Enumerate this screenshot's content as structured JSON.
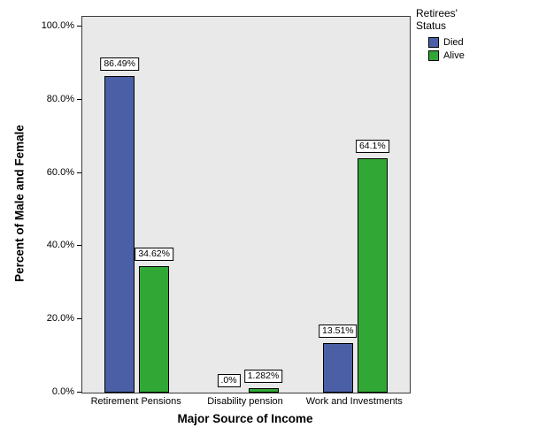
{
  "chart_data": {
    "type": "bar",
    "title": "",
    "categories": [
      "Retirement Pensions",
      "Disability pension",
      "Work and Investments"
    ],
    "series": [
      {
        "name": "Died",
        "color": "#4a5fa5",
        "values": [
          86.49,
          0.0,
          13.51
        ],
        "labels": [
          "86.49%",
          ".0%",
          "13.51%"
        ]
      },
      {
        "name": "Alive",
        "color": "#31a835",
        "values": [
          34.62,
          1.282,
          64.1
        ],
        "labels": [
          "34.62%",
          "1.282%",
          "64.1%"
        ]
      }
    ],
    "xlabel": "Major Source of Income",
    "ylabel": "Percent of Male and Female",
    "ylim": [
      0,
      100
    ],
    "yticks": [
      0,
      20,
      40,
      60,
      80,
      100
    ],
    "ytick_labels": [
      "0.0%",
      "20.0%",
      "40.0%",
      "60.0%",
      "80.0%",
      "100.0%"
    ],
    "legend_title": "Retirees' Status",
    "legend_position": "top-right",
    "plot_background": "#e9e9e9",
    "grid": false
  }
}
